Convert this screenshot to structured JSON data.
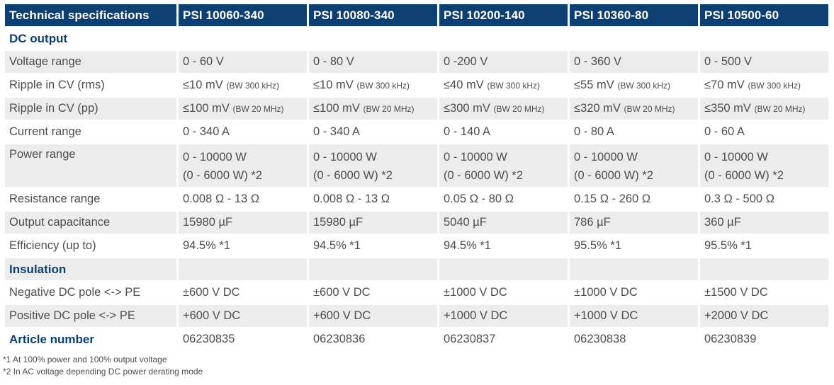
{
  "table": {
    "header": [
      "Technical specifications",
      "PSI 10060-340",
      "PSI 10080-340",
      "PSI 10200-140",
      "PSI 10360-80",
      "PSI 10500-60"
    ],
    "sections": {
      "dc_output": "DC output",
      "insulation": "Insulation",
      "article_number": "Article number"
    },
    "rows": {
      "voltage_range": {
        "label": "Voltage range",
        "values": [
          "0 - 60 V",
          "0 - 80 V",
          "0 -200 V",
          "0 - 360 V",
          "0 - 500 V"
        ]
      },
      "ripple_rms": {
        "label": "Ripple in CV (rms)",
        "values": [
          "≤10 mV",
          "≤10 mV",
          "≤40 mV",
          "≤55 mV",
          "≤70 mV"
        ],
        "notes": [
          "(BW 300 kHz)",
          "(BW 300 kHz)",
          "(BW 300 kHz)",
          "(BW 300 kHz)",
          "(BW 300 kHz)"
        ]
      },
      "ripple_pp": {
        "label": "Ripple in CV (pp)",
        "values": [
          "≤100 mV",
          "≤100 mV",
          "≤300 mV",
          "≤320 mV",
          "≤350 mV"
        ],
        "notes": [
          "(BW 20 MHz)",
          "(BW 20 MHz)",
          "(BW 20 MHz)",
          "(BW 20 MHz)",
          "(BW 20 MHz)"
        ]
      },
      "current_range": {
        "label": "Current range",
        "values": [
          "0 - 340 A",
          "0 - 340 A",
          "0 - 140 A",
          "0 - 80 A",
          "0 - 60 A"
        ]
      },
      "power_range": {
        "label": "Power range",
        "values": [
          "0 - 10000 W",
          "0 - 10000 W",
          "0 - 10000 W",
          "0 - 10000 W",
          "0 - 10000 W"
        ],
        "values2": [
          "(0 - 6000 W) *2",
          "(0 - 6000 W) *2",
          "(0 - 6000 W) *2",
          "(0 - 6000 W) *2",
          "(0 - 6000 W) *2"
        ]
      },
      "resistance_range": {
        "label": "Resistance range",
        "values": [
          "0.008 Ω - 13 Ω",
          "0.008 Ω - 13 Ω",
          "0.05 Ω - 80 Ω",
          "0.15 Ω - 260 Ω",
          "0.3 Ω - 500 Ω"
        ]
      },
      "output_capacitance": {
        "label": "Output capacitance",
        "values": [
          "15980 µF",
          "15980 µF",
          "5040 µF",
          "786 µF",
          "360 µF"
        ]
      },
      "efficiency": {
        "label": "Efficiency (up to)",
        "values": [
          "94.5% *1",
          "94.5% *1",
          "94.5% *1",
          "95.5% *1",
          "95.5% *1"
        ]
      },
      "negative_pole": {
        "label": "Negative DC pole <-> PE",
        "values": [
          "±600 V DC",
          "±600 V DC",
          "±1000 V DC",
          "±1000 V DC",
          "±1500 V DC"
        ]
      },
      "positive_pole": {
        "label": "Positive DC pole <-> PE",
        "values": [
          "+600 V DC",
          "+600 V DC",
          "+1000 V DC",
          "+1000 V DC",
          "+2000 V DC"
        ]
      },
      "article_numbers": {
        "values": [
          "06230835",
          "06230836",
          "06230837",
          "06230838",
          "06230839"
        ]
      }
    }
  },
  "footnotes": [
    "*1 At 100% power and 100% output voltage",
    "*2 In AC voltage depending DC power derating mode"
  ],
  "colors": {
    "header_bg": "#0d3f72",
    "section_text": "#0d3f72",
    "row_shade": "#ececec",
    "text": "#4d4d4d"
  }
}
